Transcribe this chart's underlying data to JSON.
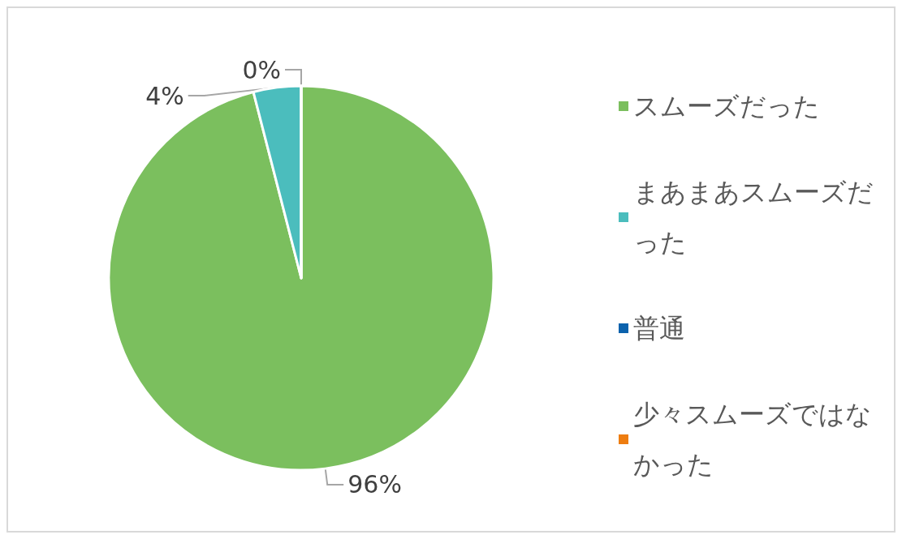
{
  "chart_data": {
    "type": "pie",
    "categories": [
      "スムーズだった",
      "まあまあスムーズだった",
      "普通",
      "少々スムーズではなかった"
    ],
    "values": [
      96,
      4,
      0,
      0
    ],
    "value_labels": [
      "96%",
      "4%",
      "0%",
      null
    ],
    "colors": [
      "#7bbf5e",
      "#4bbdbd",
      "#0b62ad",
      "#ee7d10"
    ],
    "legend": "right"
  }
}
